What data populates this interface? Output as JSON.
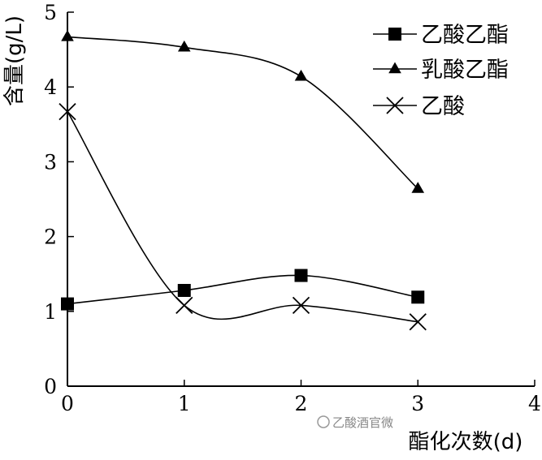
{
  "chart_data": {
    "type": "line",
    "title": "",
    "xlabel": "酯化次数(d)",
    "ylabel": "含量(g/L)",
    "x": [
      0,
      1,
      2,
      3
    ],
    "xlim": [
      0,
      4
    ],
    "ylim": [
      0,
      5
    ],
    "xticks": [
      "0",
      "1",
      "2",
      "3",
      "4"
    ],
    "yticks": [
      "0",
      "1",
      "2",
      "3",
      "4",
      "5"
    ],
    "grid": false,
    "legend_position": "top-right",
    "series": [
      {
        "name": "乙酸乙酯",
        "marker": "square",
        "values": [
          1.1,
          1.28,
          1.48,
          1.19
        ]
      },
      {
        "name": "乳酸乙酯",
        "marker": "triangle",
        "values": [
          4.67,
          4.53,
          4.14,
          2.64
        ]
      },
      {
        "name": "乙酸",
        "marker": "x",
        "values": [
          3.67,
          1.08,
          1.08,
          0.86
        ]
      }
    ]
  },
  "watermark": {
    "text": "乙酸酒官微"
  },
  "colors": {
    "line": "#000000",
    "background": "#ffffff",
    "watermark": "#888888"
  }
}
